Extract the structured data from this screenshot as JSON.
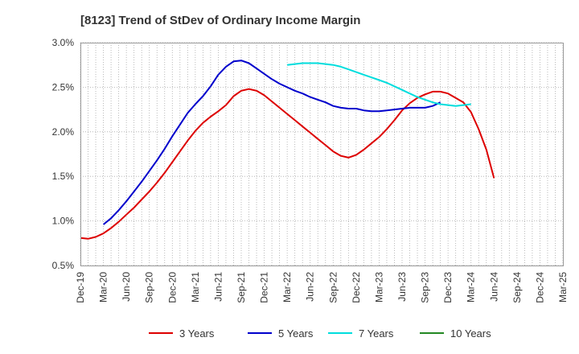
{
  "chart_data": {
    "type": "line",
    "title": "[8123]  Trend of StDev of Ordinary Income Margin",
    "xlabel": "",
    "ylabel": "",
    "x_ticks": [
      "Dec-19",
      "Mar-20",
      "Jun-20",
      "Sep-20",
      "Dec-20",
      "Mar-21",
      "Jun-21",
      "Sep-21",
      "Dec-21",
      "Mar-22",
      "Jun-22",
      "Sep-22",
      "Dec-22",
      "Mar-23",
      "Jun-23",
      "Sep-23",
      "Dec-23",
      "Mar-24",
      "Jun-24",
      "Sep-24",
      "Dec-24",
      "Mar-25"
    ],
    "y_ticks": [
      "0.5%",
      "1.0%",
      "1.5%",
      "2.0%",
      "2.5%",
      "3.0%"
    ],
    "ylim": [
      0.5,
      3.0
    ],
    "y_unit": "%",
    "grid": true,
    "legend_position": "bottom",
    "series": [
      {
        "name": "3 Years",
        "color": "#dd0000",
        "points": [
          [
            "Dec-19",
            0.81
          ],
          [
            "Jan-20",
            0.8
          ],
          [
            "Feb-20",
            0.82
          ],
          [
            "Mar-20",
            0.86
          ],
          [
            "Apr-20",
            0.92
          ],
          [
            "May-20",
            0.99
          ],
          [
            "Jun-20",
            1.07
          ],
          [
            "Jul-20",
            1.15
          ],
          [
            "Aug-20",
            1.24
          ],
          [
            "Sep-20",
            1.33
          ],
          [
            "Oct-20",
            1.43
          ],
          [
            "Nov-20",
            1.54
          ],
          [
            "Dec-20",
            1.66
          ],
          [
            "Jan-21",
            1.78
          ],
          [
            "Feb-21",
            1.9
          ],
          [
            "Mar-21",
            2.01
          ],
          [
            "Apr-21",
            2.1
          ],
          [
            "May-21",
            2.17
          ],
          [
            "Jun-21",
            2.23
          ],
          [
            "Jul-21",
            2.3
          ],
          [
            "Aug-21",
            2.4
          ],
          [
            "Sep-21",
            2.46
          ],
          [
            "Oct-21",
            2.48
          ],
          [
            "Nov-21",
            2.46
          ],
          [
            "Dec-21",
            2.41
          ],
          [
            "Jan-22",
            2.34
          ],
          [
            "Feb-22",
            2.27
          ],
          [
            "Mar-22",
            2.2
          ],
          [
            "Apr-22",
            2.13
          ],
          [
            "May-22",
            2.06
          ],
          [
            "Jun-22",
            1.99
          ],
          [
            "Jul-22",
            1.92
          ],
          [
            "Aug-22",
            1.85
          ],
          [
            "Sep-22",
            1.78
          ],
          [
            "Oct-22",
            1.73
          ],
          [
            "Nov-22",
            1.71
          ],
          [
            "Dec-22",
            1.74
          ],
          [
            "Jan-23",
            1.8
          ],
          [
            "Feb-23",
            1.87
          ],
          [
            "Mar-23",
            1.94
          ],
          [
            "Apr-23",
            2.03
          ],
          [
            "May-23",
            2.13
          ],
          [
            "Jun-23",
            2.24
          ],
          [
            "Jul-23",
            2.32
          ],
          [
            "Aug-23",
            2.38
          ],
          [
            "Sep-23",
            2.42
          ],
          [
            "Oct-23",
            2.45
          ],
          [
            "Nov-23",
            2.45
          ],
          [
            "Dec-23",
            2.43
          ],
          [
            "Jan-24",
            2.38
          ],
          [
            "Feb-24",
            2.33
          ],
          [
            "Mar-24",
            2.22
          ],
          [
            "Apr-24",
            2.03
          ],
          [
            "May-24",
            1.8
          ],
          [
            "Jun-24",
            1.48
          ]
        ]
      },
      {
        "name": "5 Years",
        "color": "#0000cc",
        "points": [
          [
            "Mar-20",
            0.96
          ],
          [
            "Apr-20",
            1.03
          ],
          [
            "May-20",
            1.12
          ],
          [
            "Jun-20",
            1.22
          ],
          [
            "Jul-20",
            1.33
          ],
          [
            "Aug-20",
            1.44
          ],
          [
            "Sep-20",
            1.56
          ],
          [
            "Oct-20",
            1.68
          ],
          [
            "Nov-20",
            1.81
          ],
          [
            "Dec-20",
            1.95
          ],
          [
            "Jan-21",
            2.08
          ],
          [
            "Feb-21",
            2.21
          ],
          [
            "Mar-21",
            2.31
          ],
          [
            "Apr-21",
            2.4
          ],
          [
            "May-21",
            2.51
          ],
          [
            "Jun-21",
            2.64
          ],
          [
            "Jul-21",
            2.73
          ],
          [
            "Aug-21",
            2.79
          ],
          [
            "Sep-21",
            2.8
          ],
          [
            "Oct-21",
            2.77
          ],
          [
            "Nov-21",
            2.71
          ],
          [
            "Dec-21",
            2.65
          ],
          [
            "Jan-22",
            2.59
          ],
          [
            "Feb-22",
            2.54
          ],
          [
            "Mar-22",
            2.5
          ],
          [
            "Apr-22",
            2.46
          ],
          [
            "May-22",
            2.43
          ],
          [
            "Jun-22",
            2.39
          ],
          [
            "Jul-22",
            2.36
          ],
          [
            "Aug-22",
            2.33
          ],
          [
            "Sep-22",
            2.29
          ],
          [
            "Oct-22",
            2.27
          ],
          [
            "Nov-22",
            2.26
          ],
          [
            "Dec-22",
            2.26
          ],
          [
            "Jan-23",
            2.24
          ],
          [
            "Feb-23",
            2.23
          ],
          [
            "Mar-23",
            2.23
          ],
          [
            "Apr-23",
            2.24
          ],
          [
            "May-23",
            2.25
          ],
          [
            "Jun-23",
            2.26
          ],
          [
            "Jul-23",
            2.27
          ],
          [
            "Aug-23",
            2.27
          ],
          [
            "Sep-23",
            2.27
          ],
          [
            "Oct-23",
            2.29
          ],
          [
            "Nov-23",
            2.33
          ]
        ]
      },
      {
        "name": "7 Years",
        "color": "#00dddd",
        "points": [
          [
            "Mar-22",
            2.75
          ],
          [
            "Apr-22",
            2.76
          ],
          [
            "May-22",
            2.77
          ],
          [
            "Jun-22",
            2.77
          ],
          [
            "Jul-22",
            2.77
          ],
          [
            "Aug-22",
            2.76
          ],
          [
            "Sep-22",
            2.75
          ],
          [
            "Oct-22",
            2.73
          ],
          [
            "Nov-22",
            2.7
          ],
          [
            "Dec-22",
            2.67
          ],
          [
            "Jan-23",
            2.64
          ],
          [
            "Feb-23",
            2.61
          ],
          [
            "Mar-23",
            2.58
          ],
          [
            "Apr-23",
            2.55
          ],
          [
            "May-23",
            2.51
          ],
          [
            "Jun-23",
            2.47
          ],
          [
            "Jul-23",
            2.43
          ],
          [
            "Aug-23",
            2.39
          ],
          [
            "Sep-23",
            2.36
          ],
          [
            "Oct-23",
            2.33
          ],
          [
            "Nov-23",
            2.31
          ],
          [
            "Dec-23",
            2.3
          ],
          [
            "Jan-24",
            2.29
          ],
          [
            "Feb-24",
            2.3
          ],
          [
            "Mar-24",
            2.31
          ]
        ]
      },
      {
        "name": "10 Years",
        "color": "#228822",
        "points": []
      }
    ]
  }
}
